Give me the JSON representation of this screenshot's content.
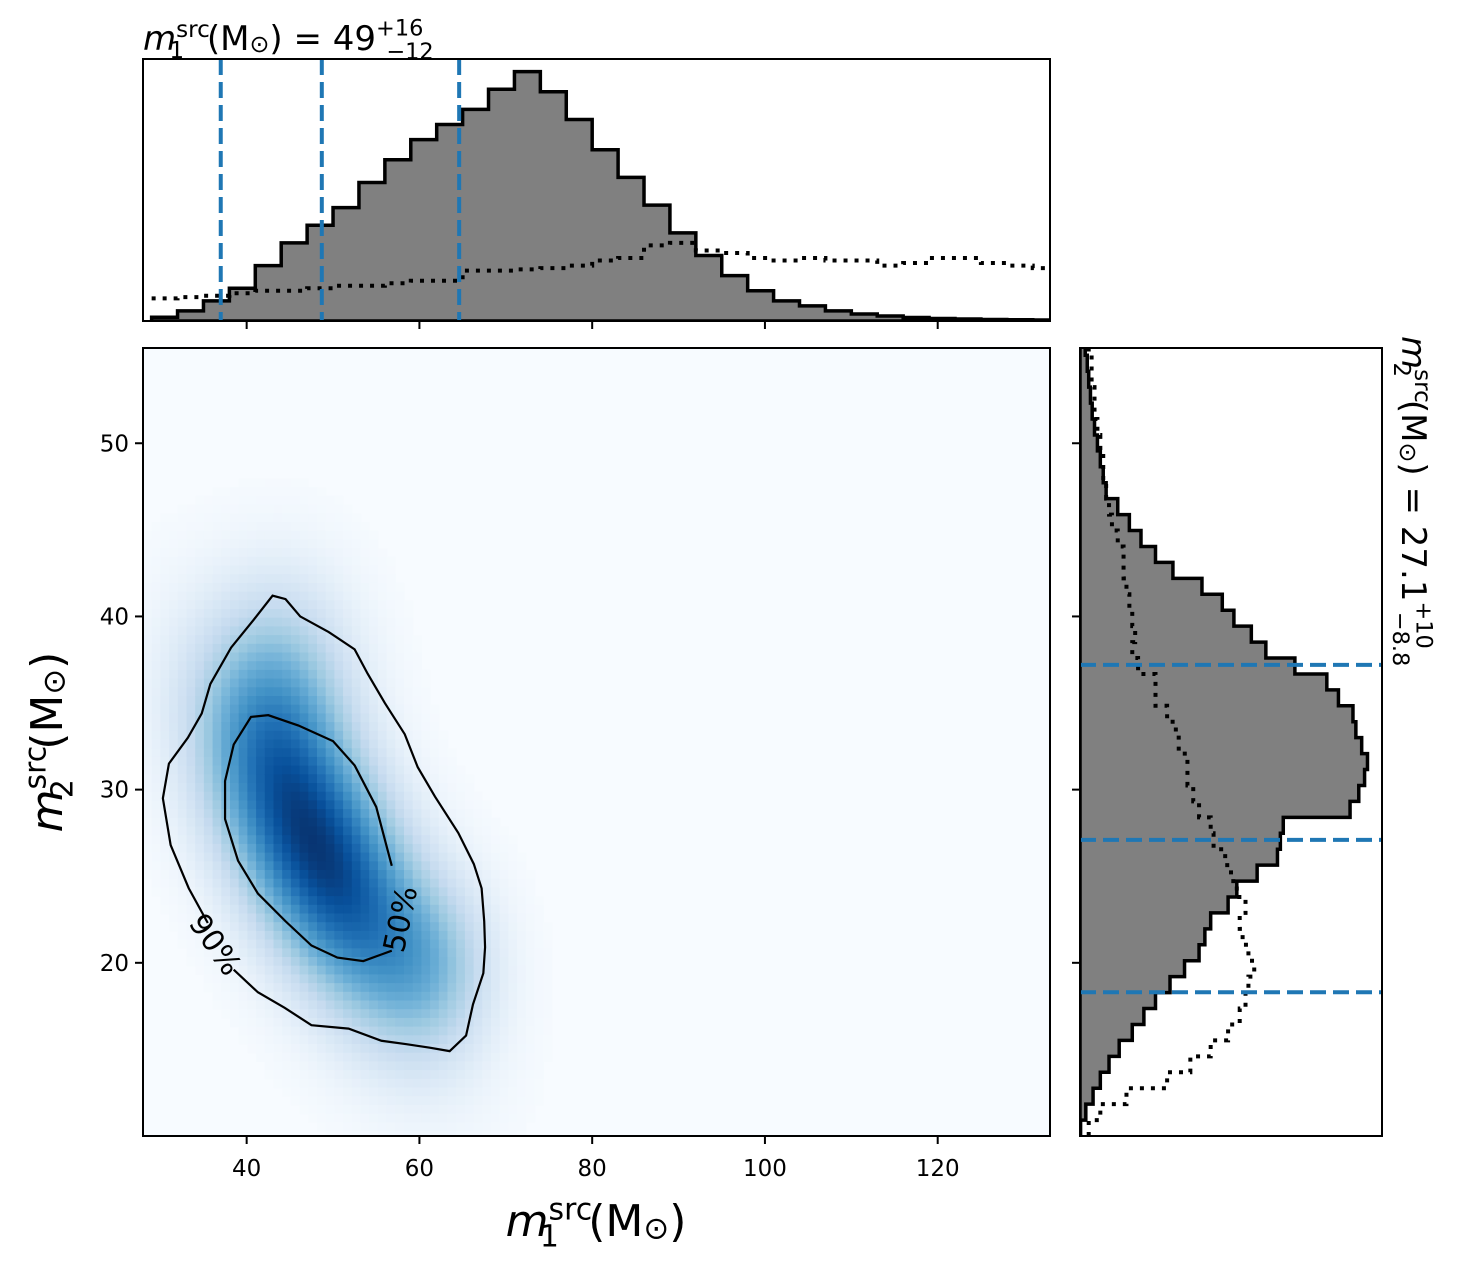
{
  "chart_data": [
    {
      "panel": "top-marginal",
      "type": "histogram",
      "variable": "m1_src",
      "title": {
        "parts": [
          "m",
          "1",
          "src",
          " (M",
          "⊙",
          ") = 49",
          "+16",
          "−12"
        ],
        "text": "m1src (M⊙) = 49 +16 −12"
      },
      "xlim": [
        28,
        133
      ],
      "bin_width": 3,
      "bin_edges_start": 29,
      "posterior_density": [
        0.015,
        0.04,
        0.08,
        0.13,
        0.22,
        0.31,
        0.38,
        0.45,
        0.55,
        0.64,
        0.72,
        0.78,
        0.84,
        0.92,
        0.99,
        0.91,
        0.8,
        0.68,
        0.57,
        0.46,
        0.35,
        0.26,
        0.18,
        0.12,
        0.08,
        0.06,
        0.04,
        0.028,
        0.02,
        0.014,
        0.01,
        0.008,
        0.006,
        0.005,
        0.004,
        0.003,
        0.003,
        0.002,
        0.002,
        0.0015,
        0.0015,
        0.001,
        0.001,
        0.001,
        0.001,
        0.001,
        0.001,
        0.0005,
        0.0005,
        0.0005,
        0.0005,
        0.0005,
        0.0005,
        0.0005,
        0.0005
      ],
      "prior_density": [
        0.09,
        0.095,
        0.1,
        0.11,
        0.12,
        0.12,
        0.13,
        0.14,
        0.14,
        0.15,
        0.16,
        0.16,
        0.2,
        0.2,
        0.205,
        0.21,
        0.22,
        0.24,
        0.25,
        0.3,
        0.31,
        0.28,
        0.27,
        0.25,
        0.24,
        0.25,
        0.24,
        0.24,
        0.22,
        0.23,
        0.25,
        0.25,
        0.23,
        0.22,
        0.21,
        0.21,
        0.2,
        0.19,
        0.18,
        0.17,
        0.15,
        0.15,
        0.16,
        0.16,
        0.15,
        0.14,
        0.13,
        0.11,
        0.12,
        0.13,
        0.11,
        0.12,
        0.11,
        0.1,
        0.1
      ],
      "ylim": [
        0,
        1.04
      ],
      "quantile_lines": [
        37,
        48.7,
        64.6
      ],
      "xticks": [
        40,
        60,
        80,
        100,
        120
      ]
    },
    {
      "panel": "joint-density",
      "type": "heatmap",
      "xlabel": {
        "parts": [
          "m",
          "1",
          "src",
          " (M",
          "⊙",
          ")"
        ]
      },
      "ylabel": {
        "parts": [
          "m",
          "2",
          "src",
          " (M",
          "⊙",
          ")"
        ]
      },
      "xlim": [
        28,
        133
      ],
      "ylim": [
        10,
        55.5
      ],
      "xticks": [
        40,
        60,
        80,
        100,
        120
      ],
      "yticks": [
        20,
        30,
        40,
        50
      ],
      "colormap": "Blues",
      "density_peak": {
        "m1": 48.5,
        "m2": 26.2
      },
      "contours": [
        {
          "level": "50%",
          "points": [
            [
              56.8,
              25.6
            ],
            [
              55,
              29
            ],
            [
              52.5,
              31.4
            ],
            [
              50,
              32.8
            ],
            [
              46,
              33.7
            ],
            [
              42.5,
              34.3
            ],
            [
              40.5,
              34.2
            ],
            [
              38.5,
              32.6
            ],
            [
              37.5,
              30.5
            ],
            [
              37.5,
              28.3
            ],
            [
              39,
              25.9
            ],
            [
              41.3,
              24
            ],
            [
              44.5,
              22.4
            ],
            [
              47.5,
              21
            ],
            [
              50.5,
              20.3
            ],
            [
              53.5,
              20.1
            ],
            [
              56.8,
              20.7
            ]
          ],
          "label_at": [
            58,
            22.5
          ],
          "label_angle": -78
        },
        {
          "level": "90%",
          "points": [
            [
              35.5,
              22.3
            ],
            [
              33.3,
              24.3
            ],
            [
              31.2,
              26.8
            ],
            [
              30.3,
              29.5
            ],
            [
              31,
              31.5
            ],
            [
              33.2,
              33
            ],
            [
              34.8,
              34.4
            ],
            [
              35.8,
              36.1
            ],
            [
              38.2,
              38.2
            ],
            [
              40.8,
              39.8
            ],
            [
              43,
              41.2
            ],
            [
              44.5,
              41
            ],
            [
              46.2,
              40
            ],
            [
              49.5,
              39.1
            ],
            [
              52.5,
              38.1
            ],
            [
              54,
              36.7
            ],
            [
              56,
              35
            ],
            [
              58.3,
              33.2
            ],
            [
              59.8,
              31.3
            ],
            [
              61.8,
              29.6
            ],
            [
              64.5,
              27.5
            ],
            [
              66.3,
              25.7
            ],
            [
              67.2,
              24.3
            ],
            [
              67.5,
              22.4
            ],
            [
              67.6,
              20.9
            ],
            [
              67.4,
              19.4
            ],
            [
              66.2,
              17.6
            ],
            [
              65.4,
              15.8
            ],
            [
              63.5,
              14.9
            ],
            [
              61.2,
              15.1
            ],
            [
              58.5,
              15.3
            ],
            [
              55.6,
              15.5
            ],
            [
              51.8,
              16.2
            ],
            [
              47.5,
              16.4
            ],
            [
              44.4,
              17.4
            ],
            [
              41.3,
              18.3
            ],
            [
              38.5,
              19.6
            ]
          ],
          "label_at": [
            36.2,
            21
          ],
          "label_angle": 55
        }
      ]
    },
    {
      "panel": "right-marginal",
      "type": "histogram",
      "orientation": "horizontal",
      "variable": "m2_src",
      "title": {
        "parts": [
          "m",
          "2",
          "src",
          " (M",
          "⊙",
          ") = 27.1",
          "+10",
          "−8.8"
        ],
        "text": "m2src (M⊙) = 27.1 +10 −8.8"
      },
      "ylim": [
        10,
        55.5
      ],
      "bin_width": 0.92,
      "bin_edges_start": 10,
      "posterior_density": [
        0.002,
        0.02,
        0.045,
        0.07,
        0.1,
        0.135,
        0.18,
        0.22,
        0.26,
        0.31,
        0.36,
        0.41,
        0.43,
        0.45,
        0.51,
        0.54,
        0.61,
        0.68,
        0.69,
        0.7,
        0.93,
        0.96,
        0.98,
        0.99,
        0.97,
        0.95,
        0.94,
        0.89,
        0.85,
        0.74,
        0.64,
        0.59,
        0.53,
        0.49,
        0.42,
        0.32,
        0.26,
        0.21,
        0.17,
        0.13,
        0.09,
        0.08,
        0.07,
        0.06,
        0.05,
        0.042,
        0.036,
        0.03,
        0.025,
        0.018,
        0.012,
        0.006,
        0.004,
        0.002,
        0.001
      ],
      "prior_density": [
        0.03,
        0.07,
        0.16,
        0.3,
        0.38,
        0.45,
        0.51,
        0.55,
        0.57,
        0.58,
        0.6,
        0.58,
        0.56,
        0.55,
        0.57,
        0.54,
        0.52,
        0.5,
        0.46,
        0.45,
        0.41,
        0.39,
        0.37,
        0.37,
        0.34,
        0.33,
        0.3,
        0.26,
        0.26,
        0.2,
        0.18,
        0.19,
        0.18,
        0.17,
        0.16,
        0.15,
        0.15,
        0.13,
        0.11,
        0.1,
        0.09,
        0.08,
        0.08,
        0.07,
        0.06,
        0.05,
        0.05,
        0.04,
        0.04,
        0.03,
        0.03,
        0.02,
        0.02,
        0.01,
        0.01
      ],
      "xlim": [
        0,
        1.04
      ],
      "quantile_lines": [
        18.3,
        27.1,
        37.2
      ],
      "yticks": [
        20,
        30,
        40,
        50
      ]
    }
  ],
  "colors": {
    "hist_fill": "#808080",
    "hist_edge": "#000000",
    "quantile_line": "#1f77b4",
    "density_low": "#f7fbff",
    "density_high": "#08306b"
  }
}
